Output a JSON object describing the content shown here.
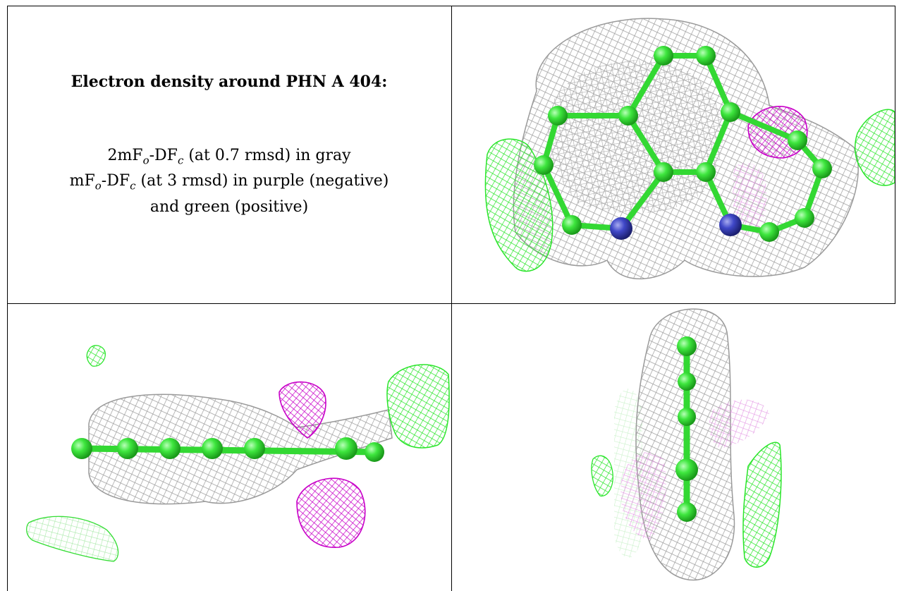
{
  "caption": {
    "title": "Electron density around PHN A 404:",
    "line1_prefix": "2mF",
    "line1_sub_o": "o",
    "line1_mid": "-DF",
    "line1_sub_c": "c",
    "line1_suffix": " (at 0.7 rmsd) in gray",
    "line2_prefix": "mF",
    "line2_sub_o": "o",
    "line2_mid": "-DF",
    "line2_sub_c": "c",
    "line2_suffix": " (at 3 rmsd) in purple (negative)",
    "line3": "and green (positive)"
  },
  "colors": {
    "grid_line": "#000000",
    "density_mesh_gray": "#a8a8a8",
    "difference_negative_purple": "#cc00cc",
    "difference_positive_green": "#33ee33",
    "carbon_atom": "#33e633",
    "nitrogen_atom": "#3f46c4"
  },
  "panels": [
    {
      "view": "top",
      "icon": "electron-density-mesh-top-view"
    },
    {
      "view": "side",
      "icon": "electron-density-mesh-side-view"
    },
    {
      "view": "end",
      "icon": "electron-density-mesh-end-view"
    }
  ]
}
